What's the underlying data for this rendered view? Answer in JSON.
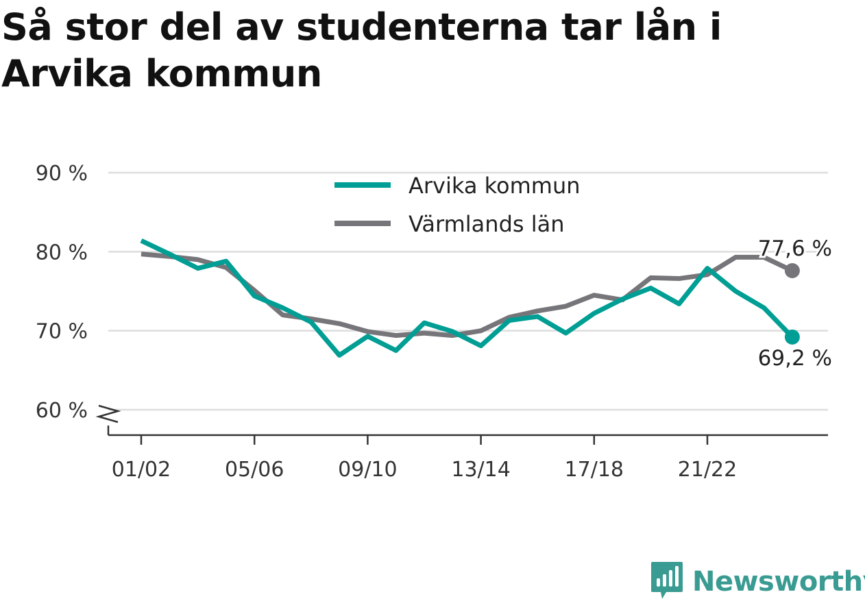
{
  "title": "Så stor del av studenterna tar lån i Arvika kommun",
  "brand": {
    "name": "Newsworthy",
    "color": "#3a9b93"
  },
  "colors": {
    "arvika": "#009e94",
    "varmland": "#76757a",
    "grid": "#dddddd",
    "axis": "#333333"
  },
  "chart_data": {
    "type": "line",
    "title": "Så stor del av studenterna tar lån i Arvika kommun",
    "x": [
      "01/02",
      "02/03",
      "03/04",
      "04/05",
      "05/06",
      "06/07",
      "07/08",
      "08/09",
      "09/10",
      "10/11",
      "11/12",
      "12/13",
      "13/14",
      "14/15",
      "15/16",
      "16/17",
      "17/18",
      "18/19",
      "19/20",
      "20/21",
      "21/22",
      "22/23",
      "23/24",
      "24/25"
    ],
    "x_tick_labels": [
      "01/02",
      "05/06",
      "09/10",
      "13/14",
      "17/18",
      "21/22"
    ],
    "y_tick_labels": [
      "60 %",
      "70 %",
      "80 %",
      "90 %"
    ],
    "y_ticks": [
      60,
      70,
      80,
      90
    ],
    "ylim": [
      56.8,
      90
    ],
    "y_axis_break": true,
    "grid": true,
    "legend_position": "top-center",
    "series": [
      {
        "name": "Arvika kommun",
        "color": "#009e94",
        "values": [
          81.4,
          79.7,
          77.9,
          78.8,
          74.4,
          72.9,
          71.1,
          66.9,
          69.3,
          67.5,
          71.0,
          69.9,
          68.1,
          71.3,
          71.8,
          69.7,
          72.2,
          74.0,
          75.4,
          73.4,
          77.9,
          75.0,
          72.9,
          69.2
        ],
        "end_label": "69,2 %"
      },
      {
        "name": "Värmlands län",
        "color": "#76757a",
        "values": [
          79.7,
          79.4,
          79.0,
          78.0,
          75.1,
          72.0,
          71.5,
          70.9,
          69.9,
          69.4,
          69.7,
          69.4,
          70.0,
          71.7,
          72.5,
          73.1,
          74.5,
          73.9,
          76.7,
          76.6,
          77.1,
          79.3,
          79.3,
          77.6
        ],
        "end_label": "77,6 %"
      }
    ]
  }
}
